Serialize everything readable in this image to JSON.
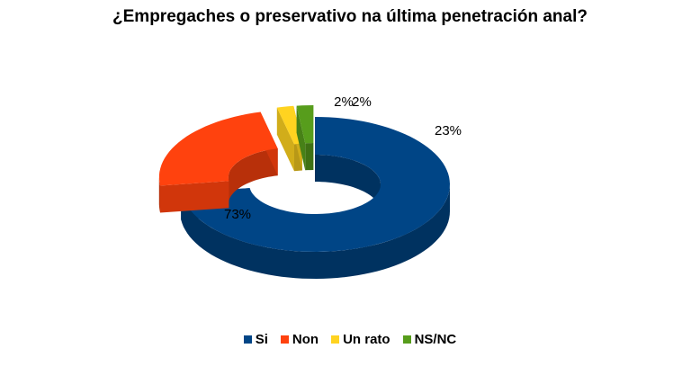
{
  "chart_data": {
    "type": "pie",
    "title": "¿Empregaches o preservativo na última penetración anal?",
    "categories": [
      "Si",
      "Non",
      "Un rato",
      "NS/NC"
    ],
    "values": [
      73,
      23,
      2,
      2
    ],
    "labels": [
      "73%",
      "23%",
      "2%",
      "2%"
    ],
    "colors": [
      "#004586",
      "#ff420e",
      "#ffd320",
      "#579d1c"
    ],
    "legend_position": "bottom"
  }
}
